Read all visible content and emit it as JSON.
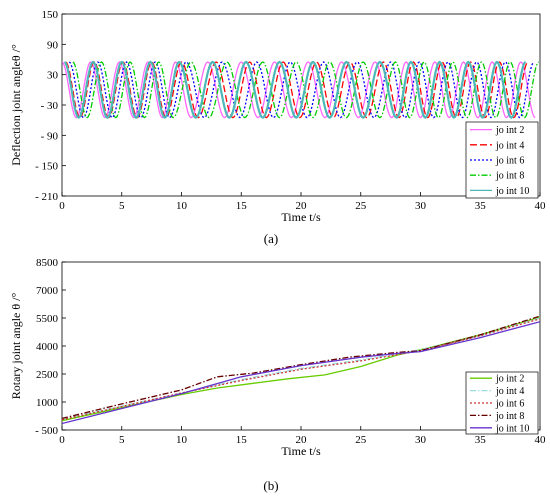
{
  "chart_data": [
    {
      "type": "line",
      "panel_label": "(a)",
      "xlabel": "Time t/s",
      "ylabel": "Deflection joint angleθ  /°",
      "xlim": [
        0,
        40
      ],
      "ylim": [
        -210,
        150
      ],
      "x_ticks": [
        "0",
        "5",
        "10",
        "15",
        "20",
        "25",
        "30",
        "35",
        "40"
      ],
      "y_ticks": [
        "150",
        "90",
        "30",
        "- 30",
        "- 90",
        "- 150",
        "- 210"
      ],
      "y_tick_values": [
        150,
        90,
        30,
        -30,
        -90,
        -150,
        -210
      ],
      "legend_position": "bottom-right",
      "grid": false,
      "series": [
        {
          "name": "jo int 2",
          "color": "#ff66ff",
          "dash": "solid",
          "amplitude": 55,
          "sample_x": [
            0,
            1.2,
            2.4,
            3.6,
            4.8,
            6.0,
            7.2,
            8.4,
            9.5,
            10.8,
            12.2,
            13.6,
            15.0,
            16.4,
            17.8,
            19.2,
            20.6,
            22.0,
            23.4,
            24.8,
            26.2,
            27.6,
            28.8,
            30.0,
            31.2,
            32.4,
            33.6,
            34.8,
            36.0,
            37.2,
            38.4,
            39.6
          ],
          "sample_y": [
            55,
            -55,
            55,
            -55,
            55,
            -55,
            55,
            -55,
            55,
            -55,
            55,
            -55,
            55,
            -55,
            55,
            -55,
            55,
            -55,
            55,
            -55,
            55,
            -55,
            55,
            -55,
            55,
            -55,
            55,
            -55,
            55,
            -55,
            55,
            -55
          ]
        },
        {
          "name": "jo int 4",
          "color": "#ff0000",
          "dash": "long-dash",
          "amplitude": 55,
          "sample_x": [
            0.3,
            1.5,
            2.7,
            3.9,
            5.1,
            6.3,
            7.5,
            8.7,
            10.0,
            11.4,
            12.9,
            14.3,
            15.7,
            17.1,
            18.5,
            19.9,
            21.3,
            22.7,
            24.1,
            25.5,
            26.9,
            28.2,
            29.4,
            30.6,
            31.8,
            33.0,
            34.2,
            35.4,
            36.6,
            37.8,
            39.0
          ],
          "sample_y": [
            55,
            -55,
            55,
            -55,
            55,
            -55,
            55,
            -55,
            55,
            -55,
            55,
            -55,
            55,
            -55,
            55,
            -55,
            55,
            -55,
            55,
            -55,
            55,
            -55,
            55,
            -55,
            55,
            -55,
            55,
            -55,
            55,
            -55,
            55
          ]
        },
        {
          "name": "jo int 6",
          "color": "#0000ff",
          "dash": "dotted",
          "amplitude": 55,
          "sample_x": [
            0.6,
            1.8,
            3.0,
            4.2,
            5.4,
            6.6,
            7.8,
            9.0,
            10.4,
            11.9,
            13.4,
            14.9,
            16.3,
            17.7,
            19.1,
            20.5,
            21.9,
            23.3,
            24.7,
            26.1,
            27.5,
            28.7,
            29.9,
            31.1,
            32.3,
            33.5,
            34.7,
            35.9,
            37.1,
            38.3,
            39.5
          ],
          "sample_y": [
            55,
            -55,
            55,
            -55,
            55,
            -55,
            55,
            -55,
            55,
            -55,
            55,
            -55,
            55,
            -55,
            55,
            -55,
            55,
            -55,
            55,
            -55,
            55,
            -55,
            55,
            -55,
            55,
            -55,
            55,
            -55,
            55,
            -55,
            55
          ]
        },
        {
          "name": "jo int 8",
          "color": "#00cc00",
          "dash": "dash-dot",
          "amplitude": 55,
          "sample_x": [
            0.9,
            2.1,
            3.3,
            4.5,
            5.7,
            6.9,
            8.1,
            9.3,
            10.8,
            12.3,
            13.8,
            15.3,
            16.8,
            18.2,
            19.6,
            21.0,
            22.4,
            23.8,
            25.2,
            26.6,
            27.9,
            29.1,
            30.3,
            31.5,
            32.7,
            33.9,
            35.1,
            36.3,
            37.5,
            38.7,
            39.9
          ],
          "sample_y": [
            55,
            -55,
            55,
            -55,
            55,
            -55,
            55,
            -55,
            55,
            -55,
            55,
            -55,
            55,
            -55,
            55,
            -55,
            55,
            -55,
            55,
            -55,
            55,
            -55,
            55,
            -55,
            55,
            -55,
            55,
            -55,
            55,
            -55,
            55
          ]
        },
        {
          "name": "jo int 10",
          "color": "#4db8b8",
          "dash": "solid",
          "amplitude": 55,
          "sample_x": [
            0.2,
            1.4,
            2.6,
            3.8,
            5.0,
            6.2,
            7.4,
            8.6,
            9.8,
            11.2,
            12.6,
            14.0,
            15.4,
            16.8,
            18.2,
            19.6,
            21.0,
            22.4,
            23.8,
            25.2,
            26.6,
            28.0,
            29.2,
            30.4,
            31.6,
            32.8,
            34.0,
            35.2,
            36.4,
            37.6,
            38.8
          ],
          "sample_y": [
            55,
            -55,
            55,
            -55,
            55,
            -55,
            55,
            -55,
            55,
            -55,
            55,
            -55,
            55,
            -55,
            55,
            -55,
            55,
            -55,
            55,
            -55,
            55,
            -55,
            55,
            -55,
            55,
            -55,
            55,
            -55,
            55,
            -55,
            55
          ]
        }
      ]
    },
    {
      "type": "line",
      "panel_label": "(b)",
      "xlabel": "Time t/s",
      "ylabel": "Rotary joint angle θ  /°",
      "xlim": [
        0,
        40
      ],
      "ylim": [
        -500,
        8500
      ],
      "x_ticks": [
        "0",
        "5",
        "10",
        "15",
        "20",
        "25",
        "30",
        "35",
        "40"
      ],
      "y_ticks": [
        "8500",
        "7000",
        "5500",
        "4000",
        "2500",
        "1000",
        "- 500"
      ],
      "y_tick_values": [
        8500,
        7000,
        5500,
        4000,
        2500,
        1000,
        -500
      ],
      "legend_position": "bottom-right",
      "grid": false,
      "series": [
        {
          "name": "jo int 2",
          "color": "#66cc00",
          "dash": "solid",
          "x": [
            0,
            5,
            10,
            13,
            16,
            19,
            22,
            25,
            28,
            31,
            35,
            40
          ],
          "y": [
            0,
            700,
            1400,
            1750,
            2000,
            2250,
            2450,
            2900,
            3500,
            3950,
            4600,
            5550
          ]
        },
        {
          "name": "jo int 4",
          "color": "#99dddd",
          "dash": "dash-dot",
          "x": [
            0,
            5,
            10,
            15,
            20,
            25,
            30,
            35,
            40
          ],
          "y": [
            80,
            780,
            1480,
            2200,
            2800,
            3250,
            3800,
            4550,
            5500
          ]
        },
        {
          "name": "jo int 6",
          "color": "#cc3333",
          "dash": "dotted",
          "x": [
            0,
            5,
            10,
            15,
            20,
            25,
            30,
            35,
            40
          ],
          "y": [
            50,
            760,
            1480,
            2150,
            2750,
            3200,
            3750,
            4550,
            5450
          ]
        },
        {
          "name": "jo int 8",
          "color": "#660000",
          "dash": "dash-dot",
          "x": [
            0,
            5,
            10,
            13,
            16,
            20,
            24,
            28,
            30,
            35,
            40
          ],
          "y": [
            120,
            900,
            1650,
            2350,
            2550,
            3000,
            3400,
            3650,
            3750,
            4600,
            5600
          ]
        },
        {
          "name": "jo int 10",
          "color": "#6633cc",
          "dash": "solid",
          "x": [
            0,
            5,
            10,
            15,
            20,
            25,
            28,
            30,
            35,
            40
          ],
          "y": [
            -150,
            650,
            1450,
            2350,
            2950,
            3400,
            3600,
            3700,
            4450,
            5300
          ]
        }
      ]
    }
  ]
}
